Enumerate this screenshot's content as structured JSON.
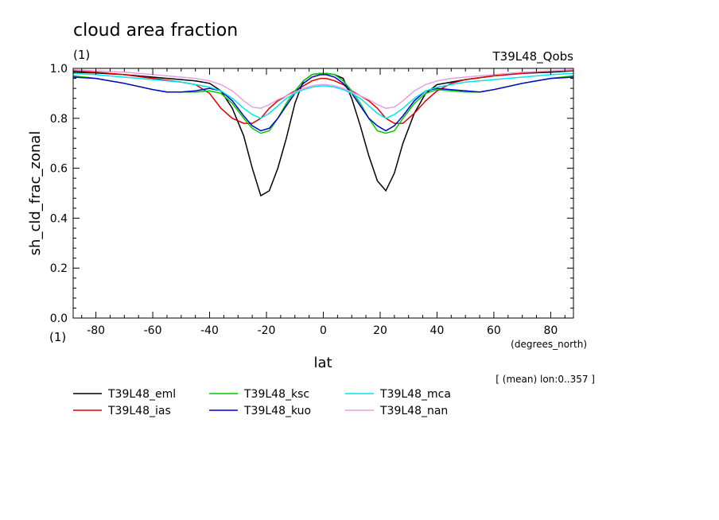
{
  "chart_data": {
    "type": "line",
    "title": "cloud area fraction",
    "units_left": "(1)",
    "right_label": "T39L48_Qobs",
    "xlabel": "lat",
    "xunits": "(degrees_north)",
    "ylabel": "sh_cld_frac_zonal",
    "yunits": "(1)",
    "note": "[ (mean) lon:0..357 ]",
    "xlim": [
      -88,
      88
    ],
    "ylim": [
      0,
      1
    ],
    "xticks": [
      -80,
      -60,
      -40,
      -20,
      0,
      20,
      40,
      60,
      80
    ],
    "yticks": [
      0.0,
      0.2,
      0.4,
      0.6,
      0.8,
      1.0
    ],
    "ytick_labels": [
      "0.0",
      "0.2",
      "0.4",
      "0.6",
      "0.8",
      "1.0"
    ],
    "legend_position": "bottom",
    "series": [
      {
        "name": "T39L48_eml",
        "color": "#000000",
        "x": [
          -88,
          -80,
          -70,
          -60,
          -50,
          -45,
          -40,
          -36,
          -32,
          -28,
          -25,
          -22,
          -19,
          -16,
          -13,
          -10,
          -7,
          -4,
          -1,
          1,
          4,
          7,
          10,
          13,
          16,
          19,
          22,
          25,
          28,
          32,
          36,
          40,
          45,
          50,
          60,
          70,
          80,
          88
        ],
        "y": [
          0.985,
          0.982,
          0.975,
          0.965,
          0.955,
          0.95,
          0.94,
          0.91,
          0.84,
          0.73,
          0.6,
          0.49,
          0.51,
          0.6,
          0.72,
          0.86,
          0.95,
          0.975,
          0.98,
          0.98,
          0.975,
          0.96,
          0.88,
          0.77,
          0.65,
          0.55,
          0.51,
          0.58,
          0.7,
          0.82,
          0.9,
          0.935,
          0.945,
          0.955,
          0.97,
          0.98,
          0.985,
          0.99
        ]
      },
      {
        "name": "T39L48_ias",
        "color": "#e00000",
        "x": [
          -88,
          -80,
          -70,
          -60,
          -50,
          -45,
          -40,
          -36,
          -32,
          -28,
          -25,
          -22,
          -19,
          -16,
          -13,
          -10,
          -7,
          -4,
          -1,
          1,
          4,
          7,
          10,
          13,
          16,
          19,
          22,
          25,
          28,
          32,
          36,
          40,
          45,
          50,
          60,
          70,
          80,
          88
        ],
        "y": [
          0.99,
          0.985,
          0.975,
          0.96,
          0.945,
          0.935,
          0.9,
          0.84,
          0.8,
          0.78,
          0.78,
          0.8,
          0.84,
          0.87,
          0.89,
          0.91,
          0.93,
          0.95,
          0.96,
          0.96,
          0.95,
          0.935,
          0.91,
          0.89,
          0.87,
          0.84,
          0.8,
          0.78,
          0.78,
          0.82,
          0.87,
          0.91,
          0.94,
          0.955,
          0.97,
          0.98,
          0.99,
          0.99
        ]
      },
      {
        "name": "T39L48_ksc",
        "color": "#00cc00",
        "x": [
          -88,
          -80,
          -70,
          -60,
          -55,
          -50,
          -45,
          -40,
          -36,
          -32,
          -28,
          -25,
          -22,
          -19,
          -16,
          -13,
          -10,
          -7,
          -4,
          -1,
          1,
          4,
          7,
          10,
          13,
          16,
          19,
          22,
          25,
          28,
          32,
          36,
          40,
          45,
          50,
          55,
          60,
          70,
          80,
          88
        ],
        "y": [
          0.97,
          0.96,
          0.94,
          0.915,
          0.905,
          0.905,
          0.905,
          0.91,
          0.9,
          0.86,
          0.8,
          0.76,
          0.74,
          0.75,
          0.8,
          0.86,
          0.91,
          0.95,
          0.975,
          0.98,
          0.98,
          0.975,
          0.95,
          0.91,
          0.86,
          0.8,
          0.75,
          0.74,
          0.75,
          0.8,
          0.86,
          0.9,
          0.915,
          0.91,
          0.905,
          0.905,
          0.915,
          0.94,
          0.96,
          0.97
        ]
      },
      {
        "name": "T39L48_kuo",
        "color": "#0000cc",
        "x": [
          -88,
          -80,
          -70,
          -60,
          -55,
          -50,
          -45,
          -40,
          -36,
          -32,
          -28,
          -25,
          -22,
          -19,
          -16,
          -13,
          -10,
          -7,
          -4,
          -1,
          1,
          4,
          7,
          10,
          13,
          16,
          19,
          22,
          25,
          28,
          32,
          36,
          40,
          45,
          50,
          55,
          60,
          70,
          80,
          88
        ],
        "y": [
          0.965,
          0.96,
          0.94,
          0.915,
          0.905,
          0.905,
          0.91,
          0.92,
          0.91,
          0.87,
          0.81,
          0.77,
          0.75,
          0.76,
          0.8,
          0.85,
          0.9,
          0.94,
          0.965,
          0.975,
          0.975,
          0.965,
          0.94,
          0.9,
          0.85,
          0.8,
          0.77,
          0.75,
          0.77,
          0.81,
          0.87,
          0.91,
          0.92,
          0.915,
          0.91,
          0.905,
          0.915,
          0.94,
          0.96,
          0.965
        ]
      },
      {
        "name": "T39L48_mca",
        "color": "#00e5ee",
        "x": [
          -88,
          -80,
          -70,
          -60,
          -50,
          -45,
          -40,
          -36,
          -32,
          -28,
          -25,
          -22,
          -19,
          -16,
          -13,
          -10,
          -7,
          -4,
          -1,
          1,
          4,
          7,
          10,
          13,
          16,
          19,
          22,
          25,
          28,
          32,
          36,
          40,
          45,
          50,
          60,
          70,
          80,
          88
        ],
        "y": [
          0.98,
          0.975,
          0.965,
          0.955,
          0.945,
          0.935,
          0.925,
          0.91,
          0.88,
          0.84,
          0.815,
          0.8,
          0.82,
          0.85,
          0.88,
          0.9,
          0.915,
          0.925,
          0.93,
          0.93,
          0.925,
          0.915,
          0.9,
          0.88,
          0.85,
          0.82,
          0.8,
          0.815,
          0.84,
          0.88,
          0.91,
          0.925,
          0.935,
          0.945,
          0.955,
          0.965,
          0.975,
          0.98
        ]
      },
      {
        "name": "T39L48_nan",
        "color": "#e8a0e0",
        "x": [
          -88,
          -80,
          -70,
          -60,
          -50,
          -45,
          -40,
          -36,
          -32,
          -28,
          -25,
          -22,
          -19,
          -16,
          -13,
          -10,
          -7,
          -4,
          -1,
          1,
          4,
          7,
          10,
          13,
          16,
          19,
          22,
          25,
          28,
          32,
          36,
          40,
          45,
          50,
          60,
          70,
          80,
          88
        ],
        "y": [
          0.995,
          0.99,
          0.985,
          0.975,
          0.965,
          0.96,
          0.95,
          0.935,
          0.91,
          0.87,
          0.845,
          0.84,
          0.855,
          0.875,
          0.89,
          0.905,
          0.92,
          0.93,
          0.935,
          0.935,
          0.93,
          0.92,
          0.905,
          0.89,
          0.875,
          0.855,
          0.84,
          0.845,
          0.87,
          0.91,
          0.935,
          0.95,
          0.96,
          0.965,
          0.975,
          0.985,
          0.99,
          0.995
        ]
      }
    ]
  }
}
